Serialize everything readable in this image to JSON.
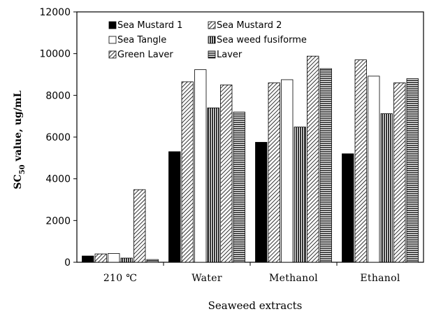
{
  "chart_data": {
    "type": "bar",
    "title": "",
    "xlabel": "Seaweed extracts",
    "ylabel_main": "SC",
    "ylabel_sub": "50",
    "ylabel_rest": " value, ug/mL",
    "categories": [
      "210 ℃",
      "Water",
      "Methanol",
      "Ethanol"
    ],
    "ylim": [
      0,
      12000
    ],
    "yticks": [
      0,
      2000,
      4000,
      6000,
      8000,
      10000,
      12000
    ],
    "grid": false,
    "legend_position": "top-left",
    "series": [
      {
        "name": "Sea Mustard 1",
        "fill": "solid",
        "values": [
          300,
          5300,
          5750,
          5200
        ]
      },
      {
        "name": "Sea Mustard 2",
        "fill": "diag",
        "values": [
          400,
          8650,
          8600,
          9700
        ]
      },
      {
        "name": "Sea Tangle",
        "fill": "white",
        "values": [
          420,
          9230,
          8750,
          8920
        ]
      },
      {
        "name": "Sea weed fusiforme",
        "fill": "vert",
        "values": [
          200,
          7400,
          6480,
          7120
        ]
      },
      {
        "name": "Green Laver",
        "fill": "diag",
        "values": [
          3480,
          8500,
          9880,
          8600
        ]
      },
      {
        "name": "Laver",
        "fill": "horiz",
        "values": [
          130,
          7200,
          9280,
          8800
        ]
      }
    ]
  }
}
